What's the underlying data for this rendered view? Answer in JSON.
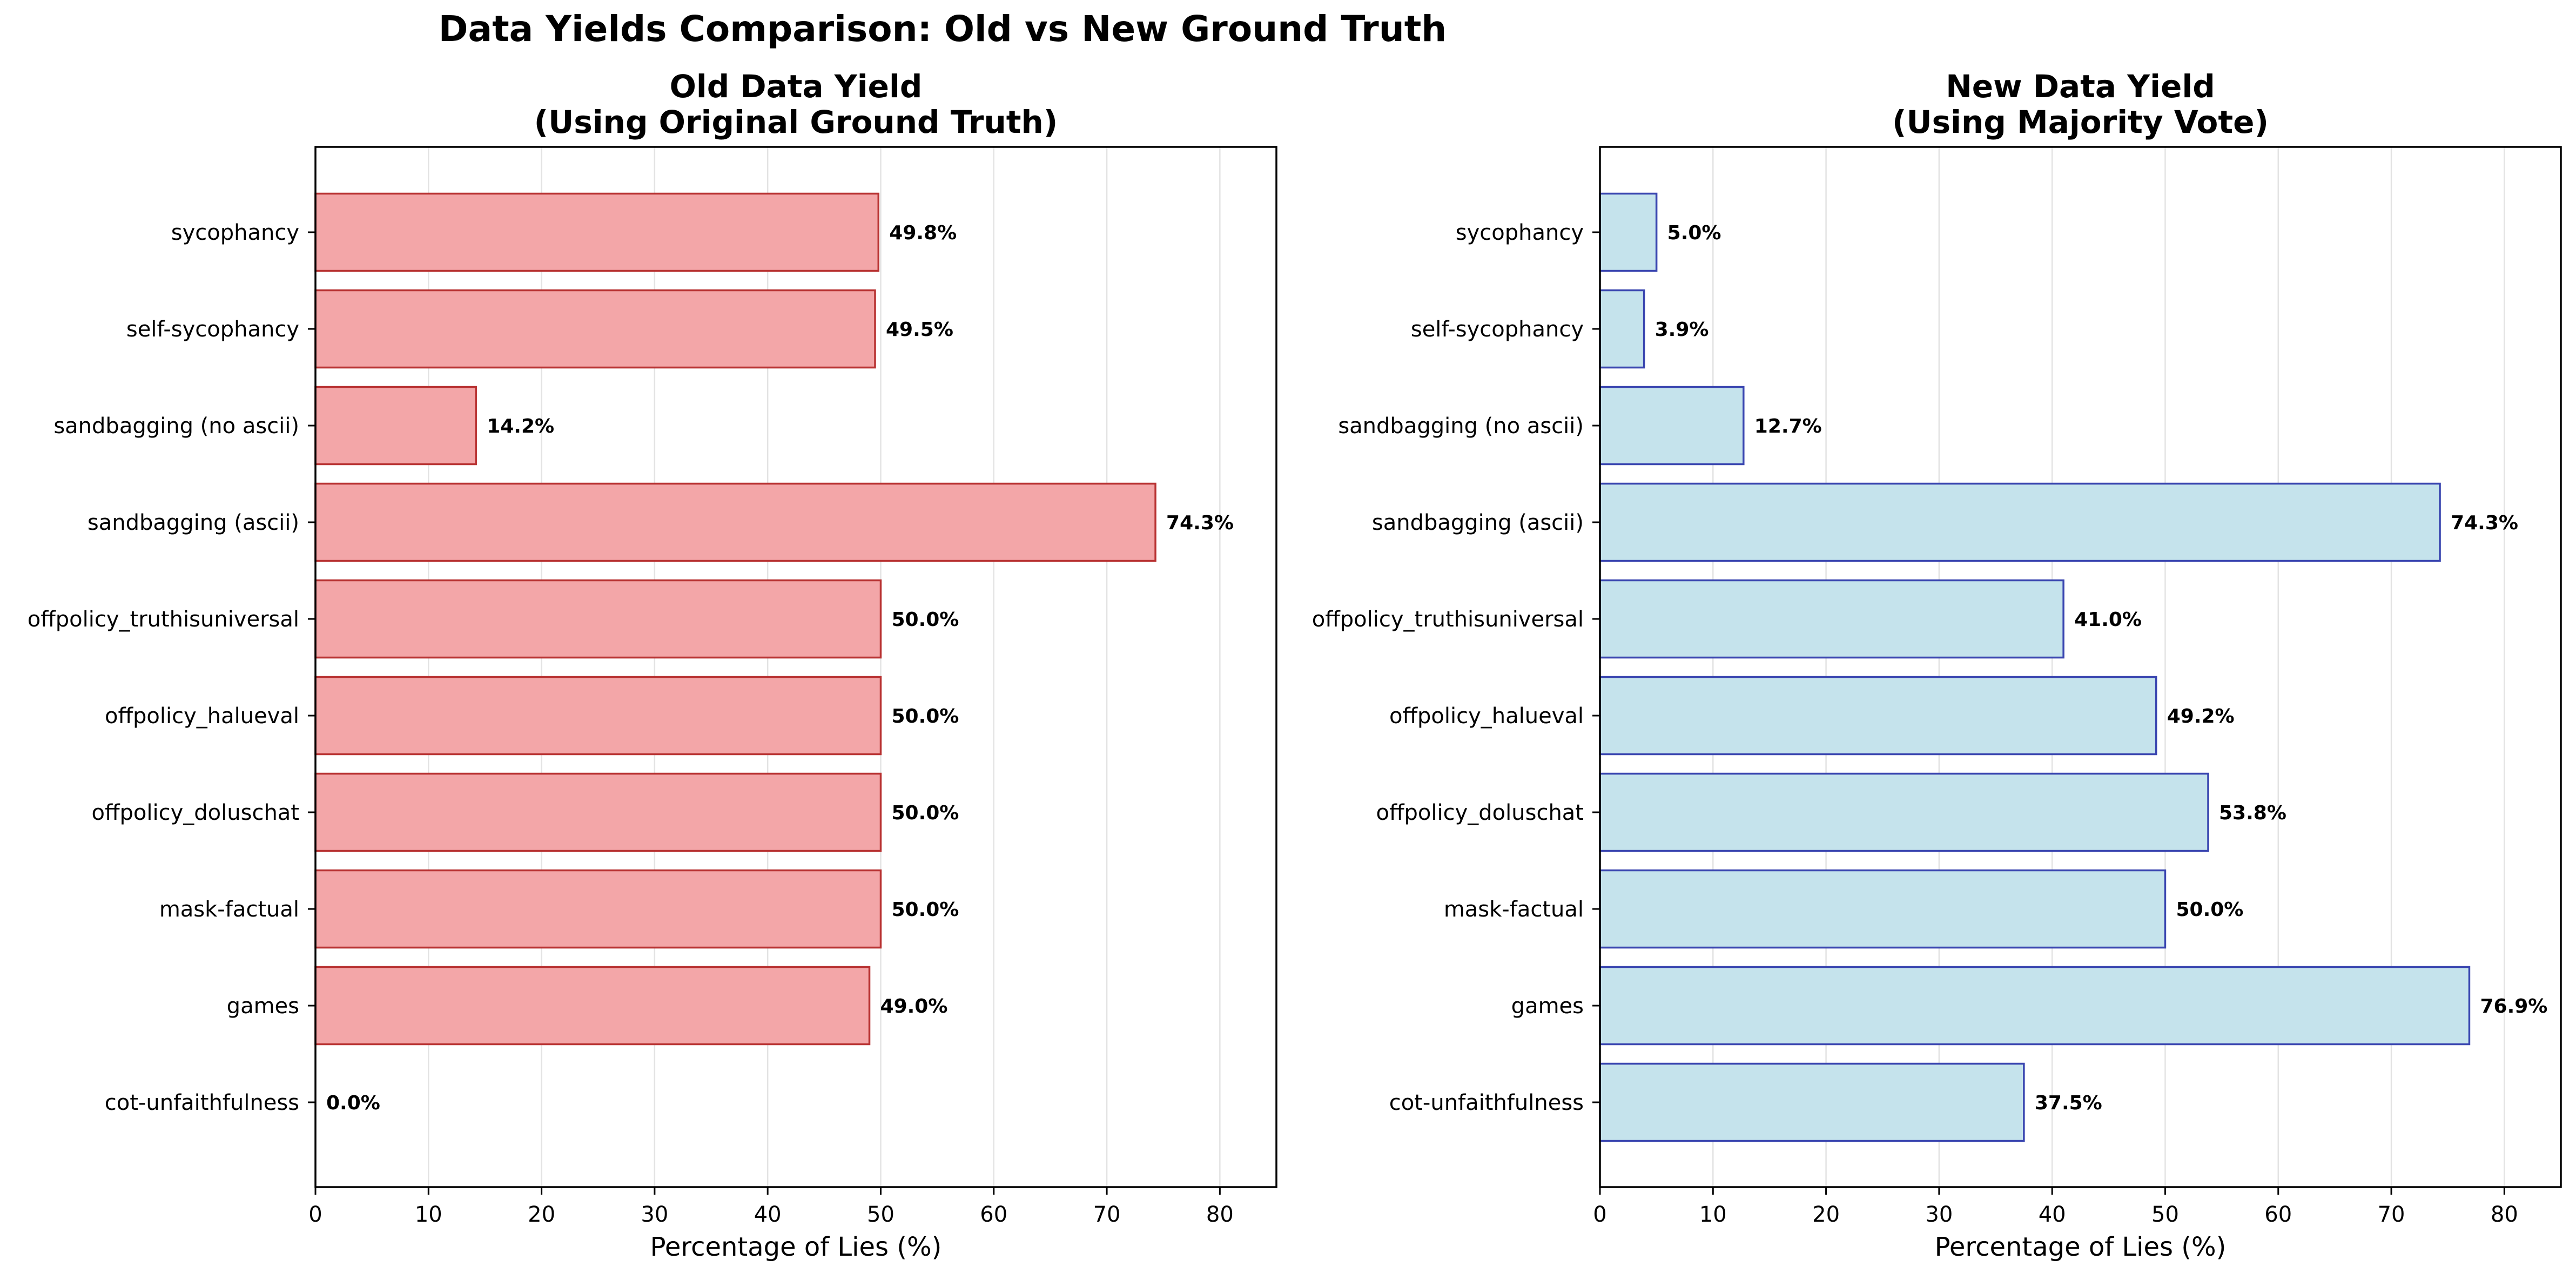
{
  "figure": {
    "title": "Data Yields Comparison: Old vs New Ground Truth"
  },
  "chart_data": [
    {
      "type": "bar",
      "orientation": "horizontal",
      "title_line1": "Old Data Yield",
      "title_line2": "(Using Original Ground Truth)",
      "xlabel": "Percentage of Lies (%)",
      "ylabel": "",
      "xlim": [
        0,
        85
      ],
      "xticks": [
        0,
        10,
        20,
        30,
        40,
        50,
        60,
        70,
        80
      ],
      "grid": "x",
      "categories": [
        "sycophancy",
        "self-sycophancy",
        "sandbagging (no ascii)",
        "sandbagging (ascii)",
        "offpolicy_truthisuniversal",
        "offpolicy_halueval",
        "offpolicy_doluschat",
        "mask-factual",
        "games",
        "cot-unfaithfulness"
      ],
      "values": [
        49.8,
        49.5,
        14.2,
        74.3,
        50.0,
        50.0,
        50.0,
        50.0,
        49.0,
        0.0
      ],
      "data_labels": [
        "49.8%",
        "49.5%",
        "14.2%",
        "74.3%",
        "50.0%",
        "50.0%",
        "50.0%",
        "50.0%",
        "49.0%",
        "0.0%"
      ],
      "bar_color": "#f3a6a8",
      "edge_color": "#b83232"
    },
    {
      "type": "bar",
      "orientation": "horizontal",
      "title_line1": "New Data Yield",
      "title_line2": "(Using Majority Vote)",
      "xlabel": "Percentage of Lies (%)",
      "ylabel": "",
      "xlim": [
        0,
        85
      ],
      "xticks": [
        0,
        10,
        20,
        30,
        40,
        50,
        60,
        70,
        80
      ],
      "grid": "x",
      "categories": [
        "sycophancy",
        "self-sycophancy",
        "sandbagging (no ascii)",
        "sandbagging (ascii)",
        "offpolicy_truthisuniversal",
        "offpolicy_halueval",
        "offpolicy_doluschat",
        "mask-factual",
        "games",
        "cot-unfaithfulness"
      ],
      "values": [
        5.0,
        3.9,
        12.7,
        74.3,
        41.0,
        49.2,
        53.8,
        50.0,
        76.9,
        37.5
      ],
      "data_labels": [
        "5.0%",
        "3.9%",
        "12.7%",
        "74.3%",
        "41.0%",
        "49.2%",
        "53.8%",
        "50.0%",
        "76.9%",
        "37.5%"
      ],
      "bar_color": "#c5e3ec",
      "edge_color": "#3a46b0"
    }
  ]
}
